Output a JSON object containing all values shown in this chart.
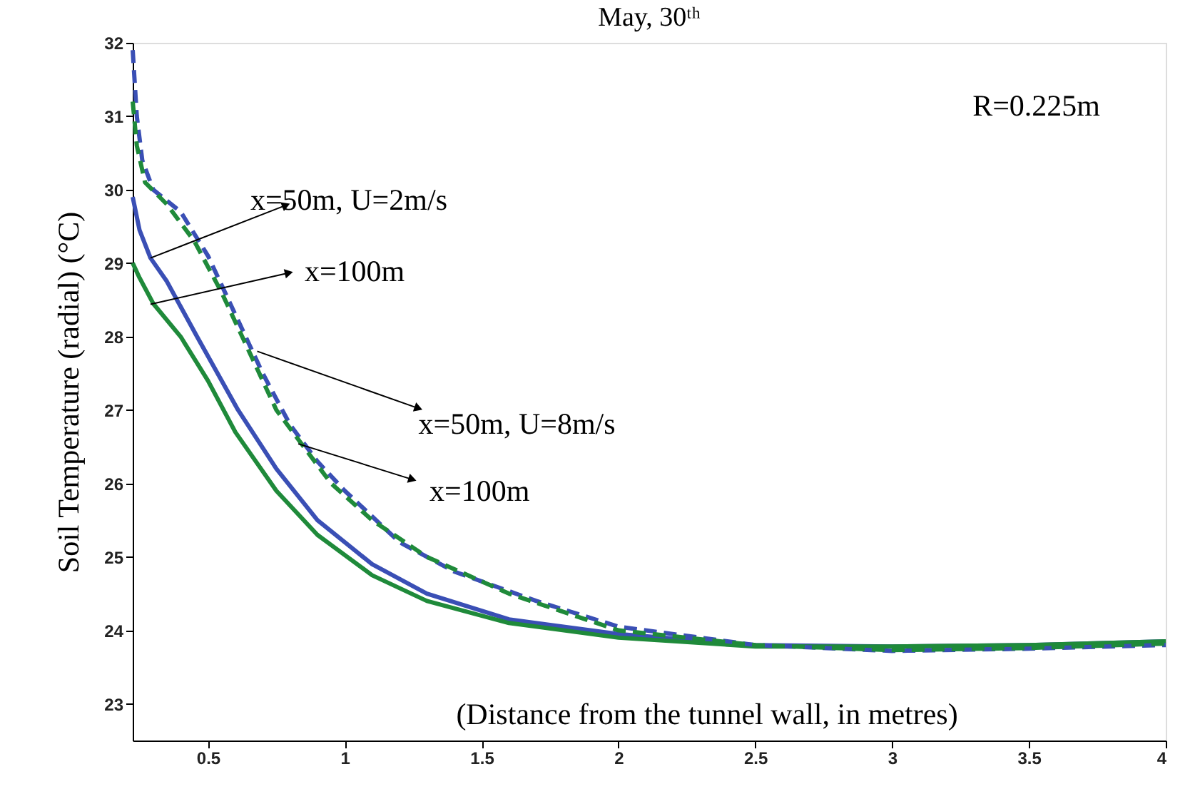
{
  "chart_data": {
    "type": "line",
    "title": "May, 30ᵗʰ",
    "xlabel": "(Distance from the tunnel wall, in metres)",
    "ylabel": "Soil Temperature (radial) (°C)",
    "xlim": [
      0.225,
      4
    ],
    "ylim": [
      22.5,
      32
    ],
    "xticks": [
      0.5,
      1,
      1.5,
      2,
      2.5,
      3,
      3.5,
      4
    ],
    "yticks": [
      23,
      24,
      25,
      26,
      27,
      28,
      29,
      30,
      31,
      32
    ],
    "grid": false,
    "marker": "none",
    "series": [
      {
        "color": "#3a4fb5",
        "line_style": "solid",
        "x": [
          0.225,
          0.25,
          0.29,
          0.35,
          0.46,
          0.61,
          0.75,
          0.9,
          1.1,
          1.3,
          1.6,
          2.0,
          2.5,
          3.0,
          3.5,
          4.0
        ],
        "values": [
          29.9,
          29.45,
          29.07,
          28.75,
          28.0,
          27.0,
          26.2,
          25.5,
          24.9,
          24.5,
          24.15,
          23.95,
          23.8,
          23.78,
          23.8,
          23.85
        ]
      },
      {
        "color": "#1f8a3a",
        "line_style": "solid",
        "x": [
          0.225,
          0.25,
          0.3,
          0.4,
          0.5,
          0.6,
          0.75,
          0.9,
          1.1,
          1.3,
          1.6,
          2.0,
          2.5,
          3.0,
          3.5,
          4.0
        ],
        "values": [
          29.0,
          28.8,
          28.45,
          28.0,
          27.4,
          26.7,
          25.9,
          25.3,
          24.75,
          24.4,
          24.1,
          23.9,
          23.78,
          23.78,
          23.8,
          23.85
        ]
      },
      {
        "color": "#3a4fb5",
        "line_style": "dashed",
        "x": [
          0.225,
          0.24,
          0.26,
          0.3,
          0.4,
          0.5,
          0.6,
          0.7,
          0.8,
          0.9,
          1.0,
          1.2,
          1.4,
          1.7,
          2.0,
          2.5,
          3.0,
          3.5,
          4.0
        ],
        "values": [
          31.9,
          31.0,
          30.4,
          30.0,
          29.7,
          29.1,
          28.3,
          27.5,
          26.8,
          26.3,
          25.9,
          25.2,
          24.8,
          24.4,
          24.05,
          23.8,
          23.72,
          23.75,
          23.8
        ]
      },
      {
        "color": "#1f8a3a",
        "line_style": "dashed",
        "x": [
          0.225,
          0.24,
          0.27,
          0.35,
          0.45,
          0.55,
          0.65,
          0.75,
          0.85,
          0.95,
          1.1,
          1.3,
          1.6,
          2.0,
          2.5,
          3.0,
          3.5,
          4.0
        ],
        "values": [
          31.2,
          30.6,
          30.1,
          29.8,
          29.3,
          28.6,
          27.8,
          27.0,
          26.5,
          26.0,
          25.5,
          25.0,
          24.5,
          24.0,
          23.8,
          23.73,
          23.76,
          23.82
        ]
      }
    ],
    "annotations": [
      {
        "text": "x=50m, U=2m/s",
        "x": 0.29,
        "y": 29.07
      },
      {
        "text": "x=100m",
        "x": 0.29,
        "y": 28.44
      },
      {
        "text": "x=50m, U=8m/s",
        "x": 0.68,
        "y": 27.8
      },
      {
        "text": "x=100m",
        "x": 0.83,
        "y": 26.54
      },
      "R=0.225m"
    ]
  }
}
